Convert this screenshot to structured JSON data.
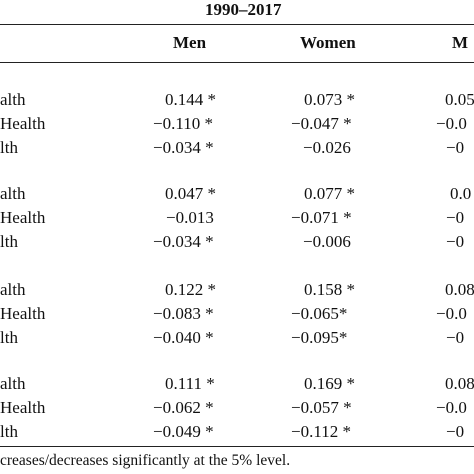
{
  "table": {
    "period": "1990–2017",
    "columns": [
      "Men",
      "Women",
      "M"
    ],
    "groups": [
      {
        "rows": [
          {
            "label": "alth",
            "values": [
              "0.144 *",
              "0.073 *",
              "0.05"
            ]
          },
          {
            "label": "Health",
            "values": [
              "−0.110 *",
              "−0.047 *",
              "−0.0"
            ]
          },
          {
            "label": "lth",
            "values": [
              "−0.034 *",
              "−0.026",
              "−0"
            ]
          }
        ]
      },
      {
        "rows": [
          {
            "label": "alth",
            "values": [
              "0.047 *",
              "0.077 *",
              "0.0"
            ]
          },
          {
            "label": "Health",
            "values": [
              "−0.013",
              "−0.071 *",
              "−0"
            ]
          },
          {
            "label": "lth",
            "values": [
              "−0.034 *",
              "−0.006",
              "−0"
            ]
          }
        ]
      },
      {
        "rows": [
          {
            "label": "alth",
            "values": [
              "0.122 *",
              "0.158 *",
              "0.08"
            ]
          },
          {
            "label": "Health",
            "values": [
              "−0.083 *",
              "−0.065*",
              "−0.0"
            ]
          },
          {
            "label": "lth",
            "values": [
              "−0.040 *",
              "−0.095*",
              "−0"
            ]
          }
        ]
      },
      {
        "rows": [
          {
            "label": "alth",
            "values": [
              "0.111 *",
              "0.169 *",
              "0.08"
            ]
          },
          {
            "label": "Health",
            "values": [
              "−0.062 *",
              "−0.057 *",
              "−0.0"
            ]
          },
          {
            "label": "lth",
            "values": [
              "−0.049 *",
              "−0.112 *",
              "−0"
            ]
          }
        ]
      }
    ],
    "footnote": "creases/decreases significantly at the 5% level."
  }
}
